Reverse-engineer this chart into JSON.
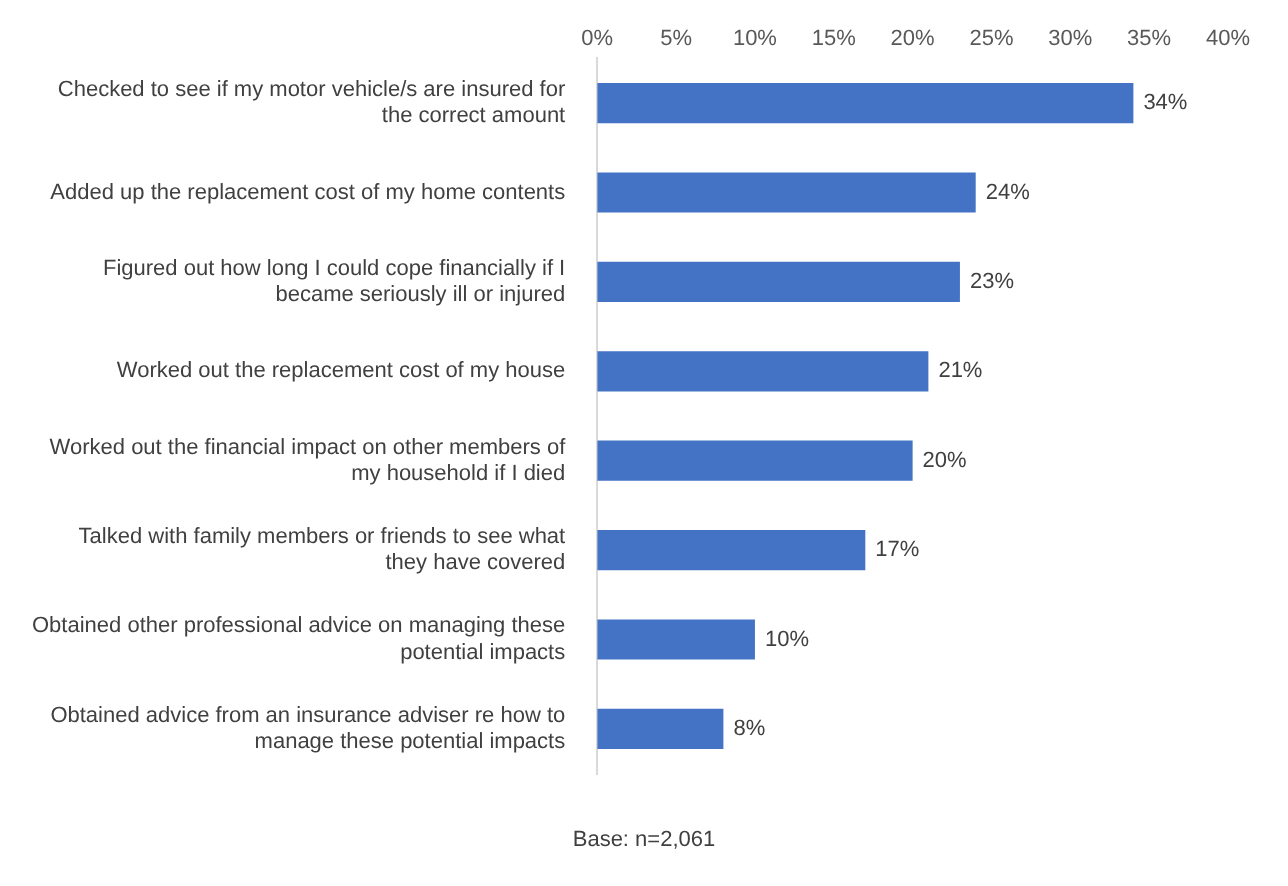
{
  "chart_data": {
    "type": "bar",
    "orientation": "horizontal",
    "categories": [
      "Checked to see if my motor vehicle/s are insured for the correct amount",
      "Added up the replacement cost of my home contents",
      "Figured out how long I could cope financially if I became seriously ill or injured",
      "Worked out the replacement cost of my house",
      "Worked out the financial impact on other members of my household if I died",
      "Talked with family members or friends to see what they have covered",
      "Obtained other professional advice on managing these potential impacts",
      "Obtained advice from an insurance adviser re how to manage these potential impacts"
    ],
    "values": [
      34,
      24,
      23,
      21,
      20,
      17,
      10,
      8
    ],
    "value_labels": [
      "34%",
      "24%",
      "23%",
      "21%",
      "20%",
      "17%",
      "10%",
      "8%"
    ],
    "color": "#4472c4",
    "xlim": [
      0,
      40
    ],
    "xticks": [
      {
        "value": 0,
        "label": "0%"
      },
      {
        "value": 5,
        "label": "5%"
      },
      {
        "value": 10,
        "label": "10%"
      },
      {
        "value": 15,
        "label": "15%"
      },
      {
        "value": 20,
        "label": "20%"
      },
      {
        "value": 25,
        "label": "25%"
      },
      {
        "value": 30,
        "label": "30%"
      },
      {
        "value": 35,
        "label": "35%"
      },
      {
        "value": 40,
        "label": "40%"
      }
    ],
    "grid": false,
    "legend": false,
    "annotations": [
      "Base: n=2,061"
    ]
  }
}
